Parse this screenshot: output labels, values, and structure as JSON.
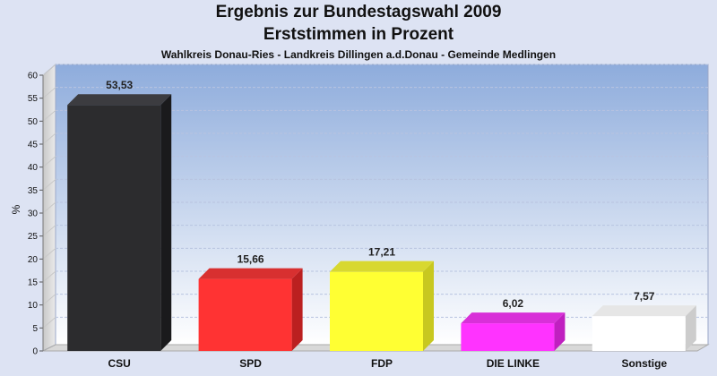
{
  "chart_data": {
    "type": "bar",
    "title": "Ergebnis zur Bundestagswahl 2009",
    "subtitle": "Erststimmen in Prozent",
    "subsubtitle": "Wahlkreis Donau-Ries - Landkreis Dillingen a.d.Donau - Gemeinde Medlingen",
    "ylabel": "%",
    "xlabel": "",
    "ylim": [
      0,
      60
    ],
    "yticks": [
      "0",
      "5",
      "10",
      "15",
      "20",
      "25",
      "30",
      "35",
      "40",
      "45",
      "50",
      "55",
      "60"
    ],
    "grid": true,
    "categories": [
      "CSU",
      "SPD",
      "FDP",
      "DIE LINKE",
      "Sonstige"
    ],
    "values": [
      53.53,
      15.66,
      17.21,
      6.02,
      7.57
    ],
    "value_labels": [
      "53,53",
      "15,66",
      "17,21",
      "6,02",
      "7,57"
    ],
    "colors": [
      "#2c2c2e",
      "#ff3333",
      "#ffff33",
      "#ff33ff",
      "#ffffff"
    ],
    "side_colors": [
      "#1a1a1c",
      "#bb2020",
      "#c8c820",
      "#c020c0",
      "#cccccc"
    ],
    "top_colors": [
      "#3c3c40",
      "#d83030",
      "#d8d830",
      "#d830d8",
      "#e6e6e6"
    ]
  }
}
